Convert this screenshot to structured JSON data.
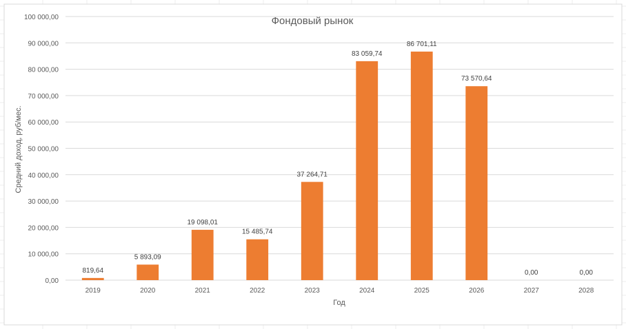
{
  "chart_data": {
    "type": "bar",
    "title": "Фондовый рынок",
    "xlabel": "Год",
    "ylabel": "Средний доход, руб/мес.",
    "categories": [
      "2019",
      "2020",
      "2021",
      "2022",
      "2023",
      "2024",
      "2025",
      "2026",
      "2027",
      "2028"
    ],
    "values": [
      819.64,
      5893.09,
      19098.01,
      15485.74,
      37264.71,
      83059.74,
      86701.11,
      73570.64,
      0,
      0
    ],
    "data_labels": [
      "819,64",
      "5 893,09",
      "19 098,01",
      "15 485,74",
      "37 264,71",
      "83 059,74",
      "86 701,11",
      "73 570,64",
      "0,00",
      "0,00"
    ],
    "yticks": [
      0,
      10000,
      20000,
      30000,
      40000,
      50000,
      60000,
      70000,
      80000,
      90000,
      100000
    ],
    "ytick_labels": [
      "0,00",
      "10 000,00",
      "20 000,00",
      "30 000,00",
      "40 000,00",
      "50 000,00",
      "60 000,00",
      "70 000,00",
      "80 000,00",
      "90 000,00",
      "100 000,00"
    ],
    "ylim": [
      0,
      100000
    ],
    "grid": true,
    "legend": "none",
    "colors": {
      "bar": "#ED7D31",
      "grid": "#D9D9D9",
      "text": "#595959",
      "title": "#595959"
    }
  }
}
